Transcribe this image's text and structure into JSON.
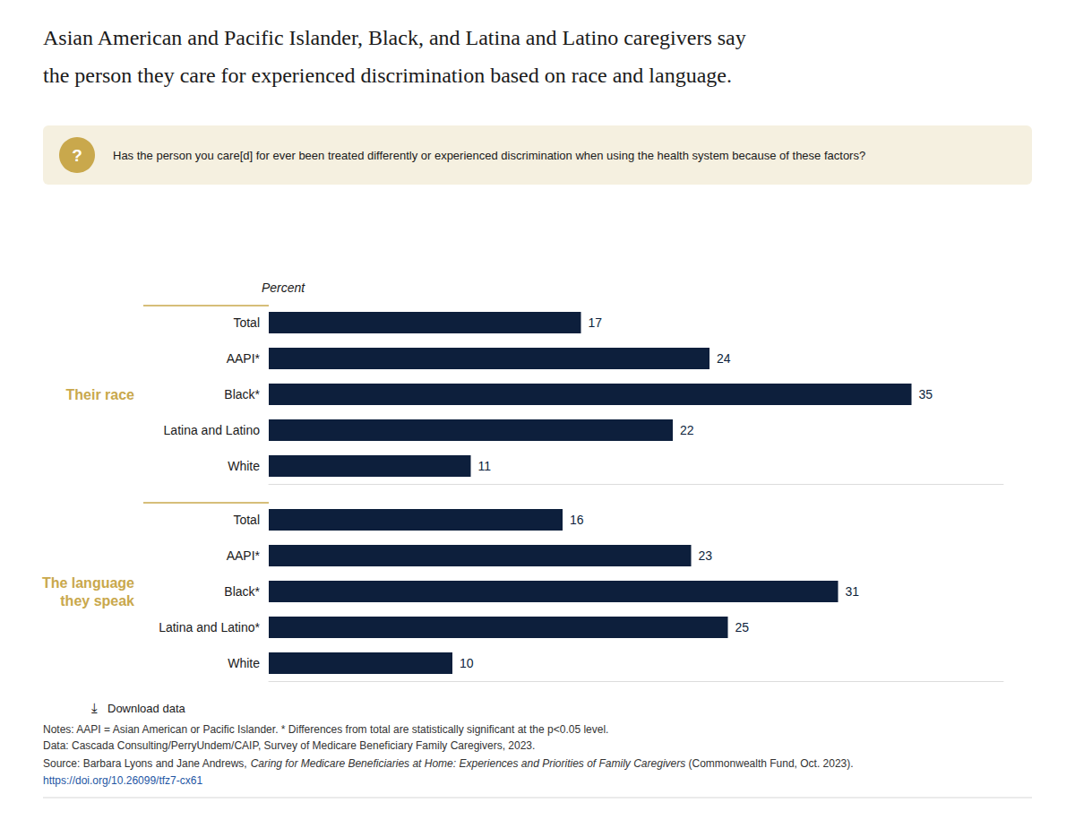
{
  "chart_data": {
    "type": "bar",
    "orientation": "horizontal",
    "title": [
      "Asian American and Pacific Islander, Black, and Latina and Latino caregivers say",
      "the person they care for experienced discrimination based on race and language."
    ],
    "subtitle": "Has the person you care[d] for ever been treated differently or experienced discrimination when using the health system because of these factors?",
    "x_label": "Percent",
    "color": "#0d1f3c",
    "data_labels": true,
    "grid": false,
    "tick_labels": "y",
    "xlim": [
      0,
      40
    ],
    "groups": [
      {
        "label": [
          "Their race"
        ],
        "categories": [
          "Total",
          "AAPI*",
          "Black*",
          "Latina and Latino",
          "White"
        ],
        "values": [
          17,
          24,
          35,
          22,
          11
        ]
      },
      {
        "label": [
          "The language",
          "they speak"
        ],
        "categories": [
          "Total",
          "AAPI*",
          "Black*",
          "Latina and Latino*",
          "White"
        ],
        "values": [
          16,
          23,
          31,
          25,
          10
        ]
      }
    ],
    "section_color": "#c9a84c",
    "question_mark": "?",
    "question_mark_color": "#c9a84c",
    "question_box_color": "#f5f0e0",
    "download_icon": "⤓",
    "download_text": "Download data",
    "notes": [
      "Notes: AAPI = Asian American or Pacific Islander. * Differences from total are statistically significant at the p<0.05 level.",
      "Data: Cascada Consulting/PerryUndem/CAIP, Survey of Medicare Beneficiary Family Caregivers, 2023."
    ],
    "source": [
      {
        "text": "Source: Barbara Lyons and Jane Andrews, ",
        "style": "normal"
      },
      {
        "text": "Caring for Medicare Beneficiaries at Home: Experiences and Priorities of Family Caregivers",
        "style": "italic"
      },
      {
        "text": " (Commonwealth Fund, Oct. 2023).",
        "style": "normal"
      }
    ],
    "source_url": "https://doi.org/10.26099/tfz7-cx61"
  }
}
